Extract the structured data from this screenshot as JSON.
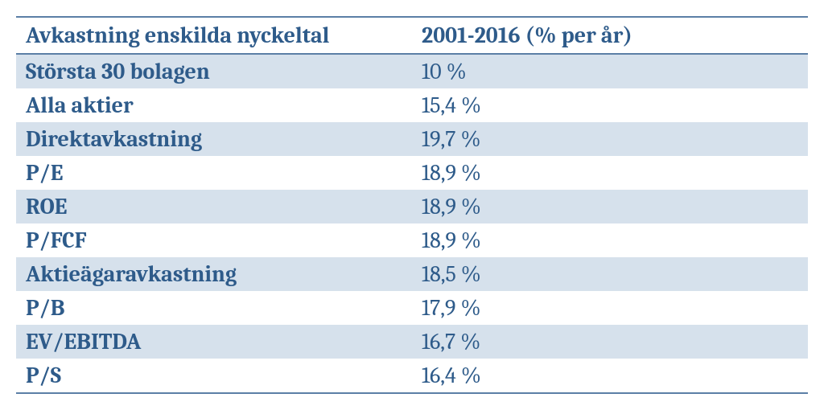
{
  "table": {
    "header_color": "#2e5b8a",
    "label_color": "#2e5b8a",
    "value_color": "#2e5b8a",
    "border_color": "#5b7fa6",
    "row_alt_bg": "#d6e1ec",
    "row_bg": "#ffffff",
    "columns": [
      "Avkastning enskilda nyckeltal",
      "2001-2016 (% per år)"
    ],
    "rows": [
      {
        "label": "Största 30 bolagen",
        "value": "10 %"
      },
      {
        "label": "Alla aktier",
        "value": "15,4 %"
      },
      {
        "label": "Direktavkastning",
        "value": "19,7 %"
      },
      {
        "label": "P/E",
        "value": "18,9 %"
      },
      {
        "label": "ROE",
        "value": "18,9 %"
      },
      {
        "label": "P/FCF",
        "value": "18,9 %"
      },
      {
        "label": "Aktieägaravkastning",
        "value": "18,5 %"
      },
      {
        "label": "P/B",
        "value": "17,9 %"
      },
      {
        "label": "EV/EBITDA",
        "value": "16,7 %"
      },
      {
        "label": "P/S",
        "value": "16,4 %"
      }
    ]
  }
}
